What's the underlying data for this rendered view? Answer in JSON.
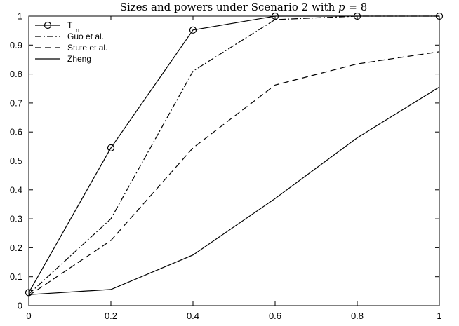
{
  "chart_data": {
    "type": "line",
    "title_prefix": "Sizes and powers under Scenario 2 with ",
    "title_var": "p",
    "title_suffix": " = 8",
    "xlabel": "",
    "ylabel": "",
    "xlim": [
      0,
      1
    ],
    "ylim": [
      0,
      1
    ],
    "x_ticks": [
      "0",
      "0.2",
      "0.4",
      "0.6",
      "0.8",
      "1"
    ],
    "y_ticks": [
      "0",
      "0.1",
      "0.2",
      "0.3",
      "0.4",
      "0.5",
      "0.6",
      "0.7",
      "0.8",
      "0.9",
      "1"
    ],
    "grid": false,
    "legend_position": "top-left",
    "x": [
      0,
      0.2,
      0.4,
      0.6,
      0.8,
      1.0
    ],
    "series": [
      {
        "name": "T",
        "name_subscript": "n",
        "style": "solid-circle",
        "values": [
          0.045,
          0.545,
          0.952,
          1.0,
          1.0,
          1.0
        ]
      },
      {
        "name": "Guo et al.",
        "style": "dashdot",
        "values": [
          0.04,
          0.3,
          0.81,
          0.988,
          1.0,
          1.0
        ]
      },
      {
        "name": "Stute et al.",
        "style": "dashed",
        "values": [
          0.035,
          0.225,
          0.545,
          0.762,
          0.835,
          0.877
        ]
      },
      {
        "name": "Zheng",
        "style": "solid",
        "values": [
          0.038,
          0.056,
          0.175,
          0.37,
          0.58,
          0.755
        ]
      }
    ]
  }
}
